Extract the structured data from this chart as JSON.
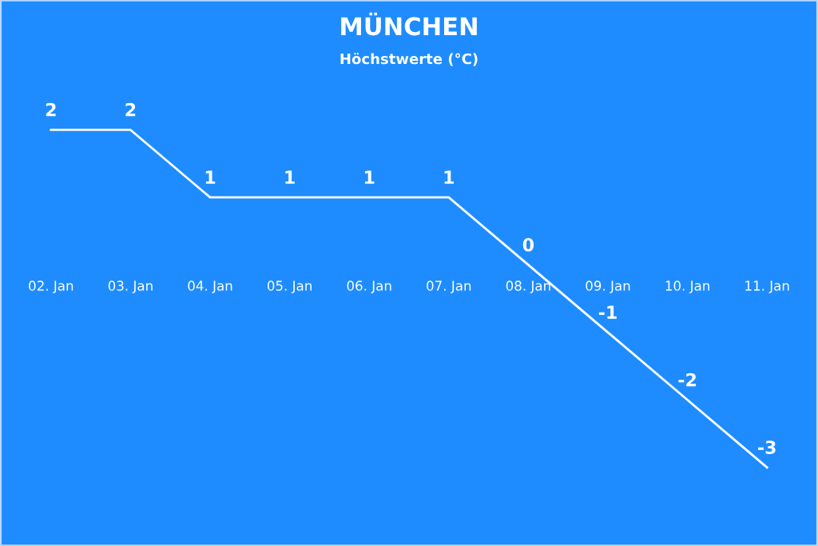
{
  "chart_data": {
    "type": "line",
    "title": "MÜNCHEN",
    "subtitle": "Höchstwerte (°C)",
    "categories": [
      "02. Jan",
      "03. Jan",
      "04. Jan",
      "05. Jan",
      "06. Jan",
      "07. Jan",
      "08. Jan",
      "09. Jan",
      "10. Jan",
      "11. Jan"
    ],
    "series": [
      {
        "color": "#ffffff",
        "values": [
          2,
          2,
          1,
          1,
          1,
          1,
          0,
          -1,
          -2,
          -3
        ]
      }
    ],
    "data_labels": true,
    "grid": false,
    "legend": false,
    "marker": "none",
    "line_style": "solid"
  }
}
